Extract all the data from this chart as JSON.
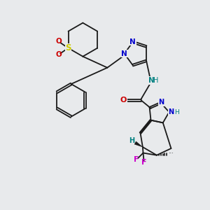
{
  "bg_color": "#e8eaec",
  "bond_color": "#1a1a1a",
  "N_color": "#0000cc",
  "O_color": "#cc0000",
  "S_color": "#cccc00",
  "F_color": "#cc00cc",
  "H_color": "#008080",
  "lw": 1.3,
  "xlim": [
    0.5,
    9.0
  ],
  "ylim": [
    1.5,
    10.5
  ]
}
